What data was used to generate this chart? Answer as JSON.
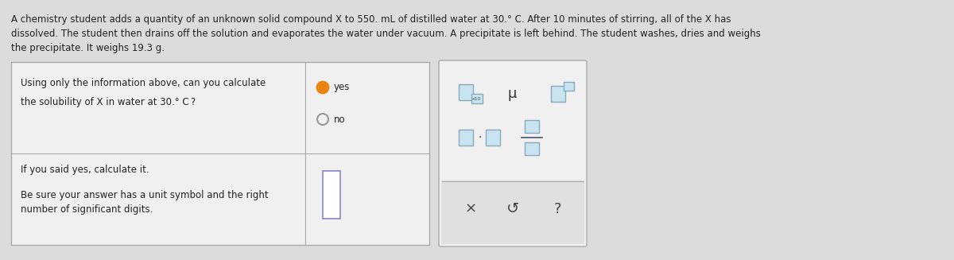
{
  "bg_color": "#dcdcdc",
  "paragraph_text": [
    "A chemistry student adds a quantity of an unknown solid compound X to 550. mL of distilled water at 30.° C. After 10 minutes of stirring, all of the X has",
    "dissolved. The student then drains off the solution and evaporates the water under vacuum. A precipitate is left behind. The student washes, dries and weighs",
    "the precipitate. It weighs 19.3 g."
  ],
  "question_text_line1": "Using only the information above, can you calculate",
  "question_text_line2": "the solubility of X in water at 30.° C ?",
  "yes_label": "yes",
  "no_label": "no",
  "answer_text_line1": "If you said yes, calculate it.",
  "answer_text_line2": "Be sure your answer has a unit symbol and the right",
  "answer_text_line3": "number of significant digits.",
  "panel_bg": "#f0f0f0",
  "panel_bg_bottom": "#e0e0e0",
  "panel_border": "#aaaaaa",
  "text_color": "#222222",
  "radio_selected_color": "#e8820a",
  "radio_unselected_color": "#999999",
  "symbol_box_color": "#a8d0e0",
  "symbol_text_color": "#444444"
}
